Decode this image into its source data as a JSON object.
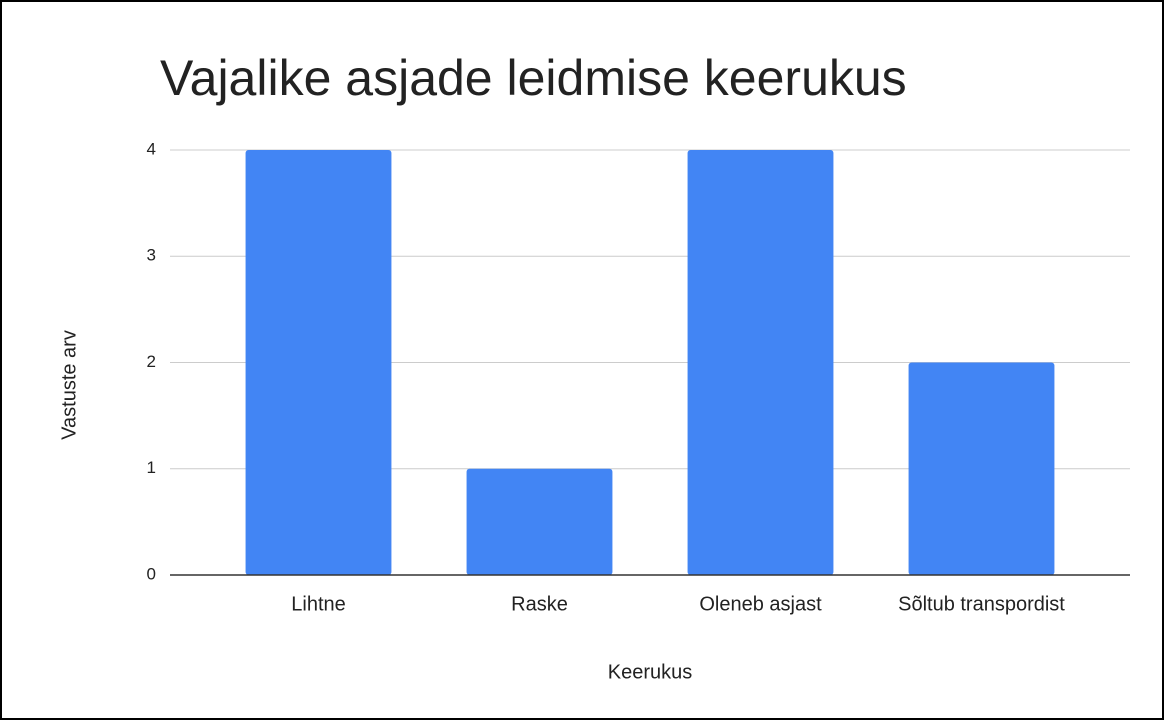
{
  "chart_data": {
    "type": "bar",
    "title": "Vajalike asjade leidmise keerukus",
    "x_label": "Keerukus",
    "y_label": "Vastuste arv",
    "categories": [
      "Lihtne",
      "Raske",
      "Oleneb asjast",
      "Sõltub transpordist"
    ],
    "values": [
      4,
      1,
      4,
      2
    ],
    "color": "#4285f4",
    "ylim": [
      0,
      4
    ],
    "yticks": [
      0,
      1,
      2,
      3,
      4
    ],
    "grid": true
  }
}
